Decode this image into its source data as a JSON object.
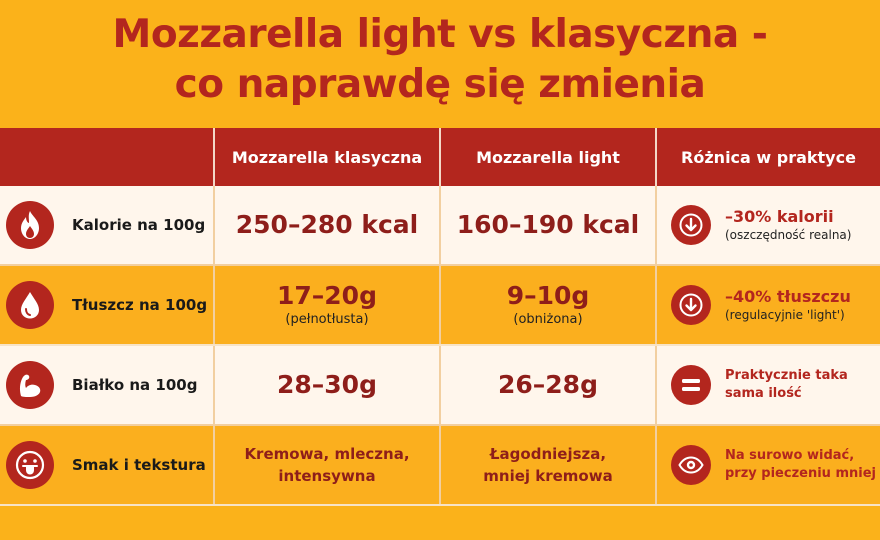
{
  "title": {
    "line1": "Mozzarella light vs klasyczna -",
    "line2": "co naprawdę się zmienia"
  },
  "table": {
    "headers": [
      "Mozzarella klasyczna",
      "Mozzarella light",
      "Różnica w praktyce"
    ],
    "rows": [
      {
        "icon": "flame-icon",
        "label": "Kalorie na 100g",
        "classic": "250–280 kcal",
        "classic_note": "",
        "light": "160–190 kcal",
        "light_note": "",
        "diff_icon": "arrow-down-icon",
        "diff_main": "–30% kalorii",
        "diff_note": "(oszczędność realna)"
      },
      {
        "icon": "drop-icon",
        "label": "Tłuszcz na 100g",
        "classic": "17–20g",
        "classic_note": "(pełnotłusta)",
        "light": "9–10g",
        "light_note": "(obniżona)",
        "diff_icon": "arrow-down-icon",
        "diff_main": "–40% tłuszczu",
        "diff_note": "(regulacyjnie 'light')"
      },
      {
        "icon": "muscle-icon",
        "label": "Białko na 100g",
        "classic": "28–30g",
        "classic_note": "",
        "light": "26–28g",
        "light_note": "",
        "diff_icon": "equals-icon",
        "diff_line1": "Praktycznie taka",
        "diff_line2": "sama ilość"
      },
      {
        "icon": "tongue-icon",
        "label": "Smak i tekstura",
        "classic_line1": "Kremowa, mleczna,",
        "classic_line2": "intensywna",
        "light_line1": "Łagodniejsza,",
        "light_line2": "mniej kremowa",
        "diff_icon": "eye-icon",
        "diff_line1": "Na surowo widać,",
        "diff_line2": "przy pieczeniu mniej"
      }
    ]
  },
  "colors": {
    "background": "#FBB21A",
    "accent": "#B3261E",
    "row_light": "#FFF6EC"
  }
}
